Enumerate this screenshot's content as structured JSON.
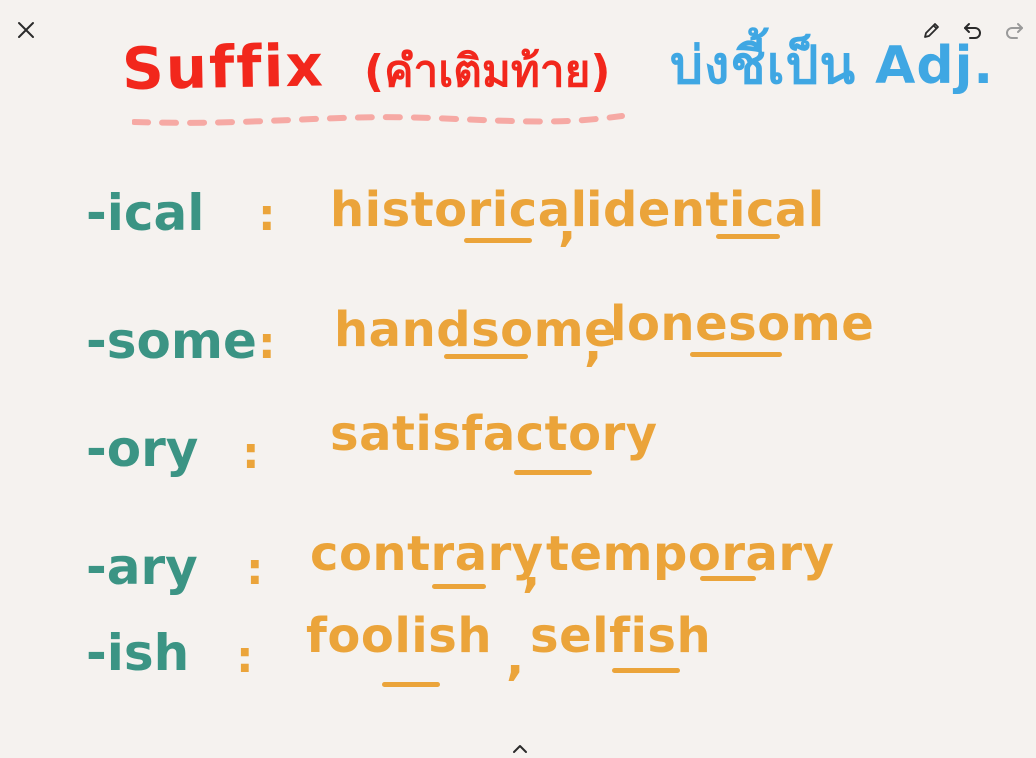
{
  "toolbar": {
    "close_icon": "close-icon",
    "pen_icon": "pen-icon",
    "undo_icon": "undo-icon",
    "redo_icon": "redo-icon"
  },
  "title": {
    "word": "Suffix",
    "thai_meaning": "(คำเติมท้าย)",
    "note": "บ่งชี้เป็น Adj."
  },
  "rows": [
    {
      "suffix": "-ical",
      "colon": ":",
      "examples": [
        "historical",
        "identical"
      ],
      "separator": ","
    },
    {
      "suffix": "-some",
      "colon": ":",
      "examples": [
        "handsome",
        "lonesome"
      ],
      "separator": ","
    },
    {
      "suffix": "-ory",
      "colon": ":",
      "examples": [
        "satisfactory"
      ],
      "separator": ""
    },
    {
      "suffix": "-ary",
      "colon": ":",
      "examples": [
        "contrary",
        "temporary"
      ],
      "separator": ","
    },
    {
      "suffix": "-ish",
      "colon": ":",
      "examples": [
        "foolish",
        "selfish"
      ],
      "separator": ","
    }
  ],
  "colors": {
    "background": "#f5f2ef",
    "title_red": "#f2271c",
    "note_blue": "#3fa7e3",
    "dash_pink": "#f6a9a4",
    "suffix_teal": "#3b9484",
    "example_orange": "#eba43a",
    "icon_dark": "#2b2b2b",
    "icon_disabled": "#9a9a9a"
  },
  "bottom": {
    "collapse_icon": "chevron-up-icon"
  }
}
